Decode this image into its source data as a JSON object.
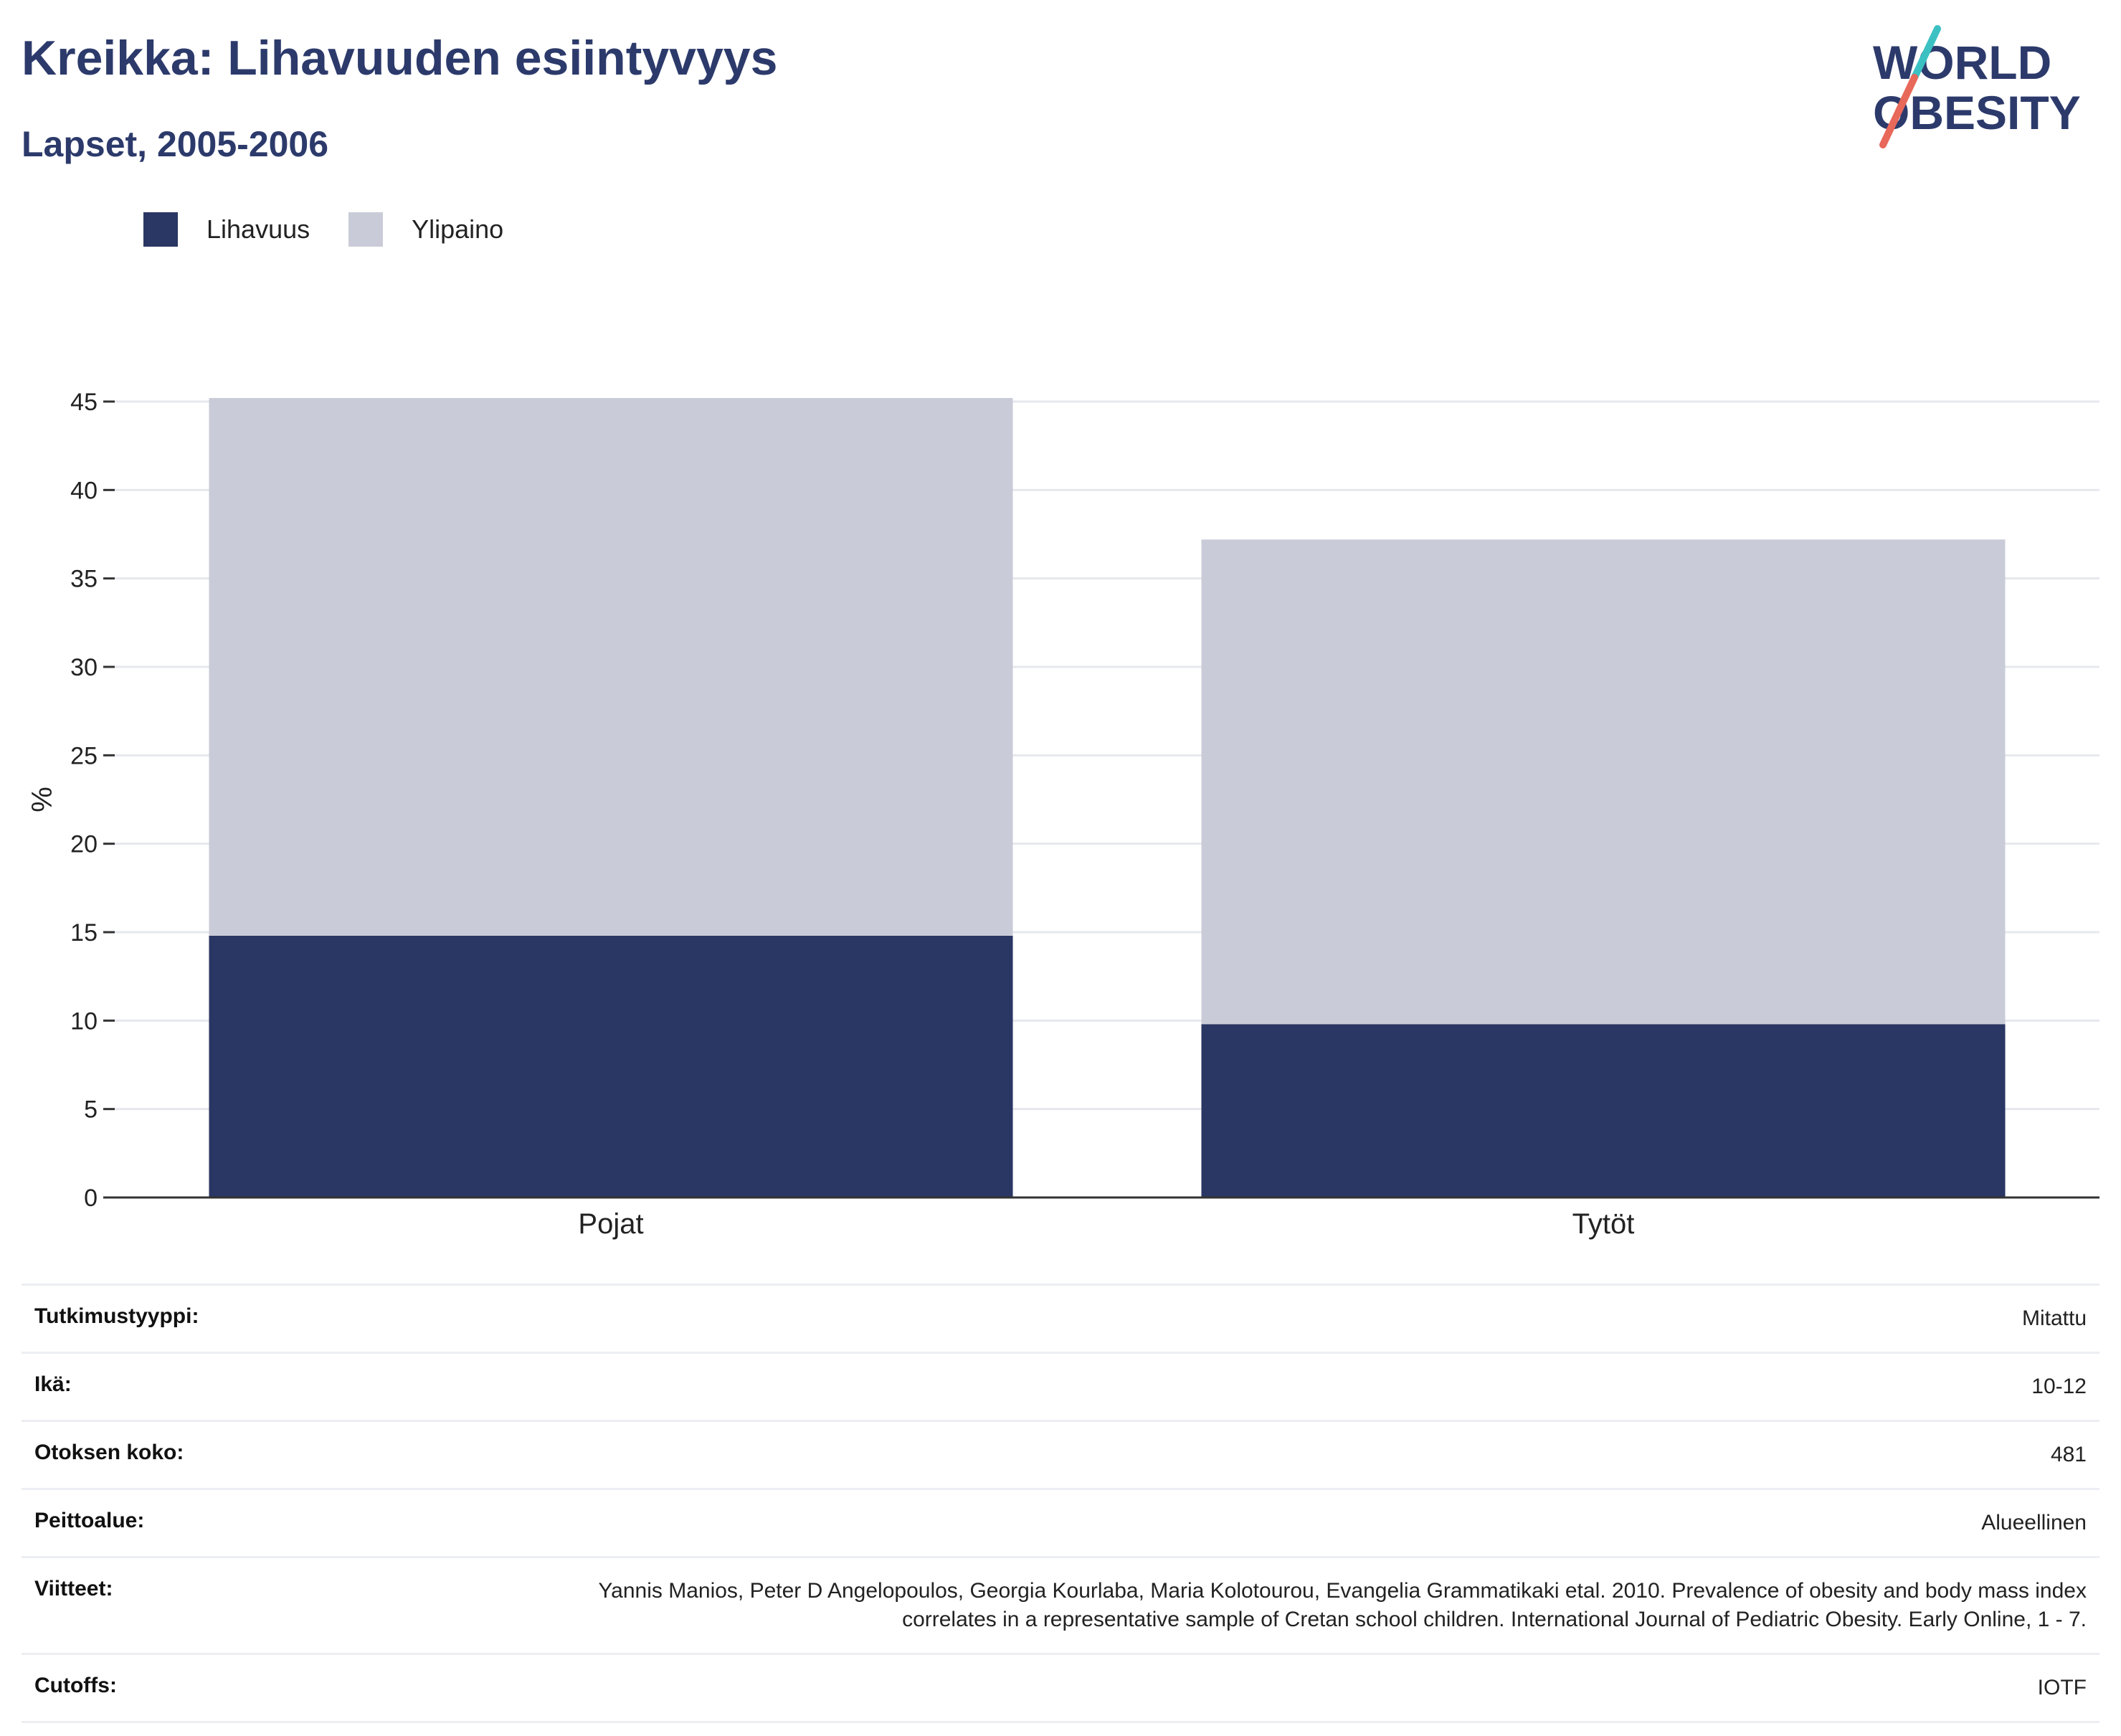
{
  "header": {
    "title": "Kreikka: Lihavuuden esiintyvyys",
    "subtitle": "Lapset, 2005-2006"
  },
  "logo": {
    "line1": "WORLD",
    "line2": "OBESITY"
  },
  "colors": {
    "obesity": "#2a3663",
    "overweight": "#c9ccd8",
    "title": "#2c3a6b",
    "grid": "#e6e8ee",
    "logo_teal": "#3cc1c3",
    "logo_coral": "#e8685a"
  },
  "legend": {
    "items": [
      {
        "label": "Lihavuus",
        "color": "#2a3663"
      },
      {
        "label": "Ylipaino",
        "color": "#c9ccd8"
      }
    ]
  },
  "chart_data": {
    "type": "bar",
    "stacked": true,
    "categories": [
      "Pojat",
      "Tytöt"
    ],
    "series": [
      {
        "name": "Lihavuus",
        "values": [
          14.8,
          9.8
        ],
        "color": "#2a3663"
      },
      {
        "name": "Ylipaino",
        "values": [
          30.4,
          27.4
        ],
        "color": "#c9ccd8"
      }
    ],
    "ylabel": "%",
    "ylim": [
      0,
      45
    ],
    "yticks": [
      0,
      5,
      10,
      15,
      20,
      25,
      30,
      35,
      40,
      45
    ],
    "grid": true,
    "legend_position": "top-left"
  },
  "meta": {
    "rows": [
      {
        "label": "Tutkimustyyppi:",
        "value": "Mitattu"
      },
      {
        "label": "Ikä:",
        "value": "10-12"
      },
      {
        "label": "Otoksen koko:",
        "value": "481"
      },
      {
        "label": "Peittoalue:",
        "value": "Alueellinen"
      },
      {
        "label": "Viitteet:",
        "value": "Yannis Manios, Peter D Angelopoulos, Georgia Kourlaba, Maria Kolotourou, Evangelia Grammatikaki etal. 2010. Prevalence of obesity and body mass index correlates in a representative sample of Cretan school children. International Journal of Pediatric Obesity. Early Online, 1 - 7."
      },
      {
        "label": "Cutoffs:",
        "value": "IOTF"
      }
    ]
  }
}
